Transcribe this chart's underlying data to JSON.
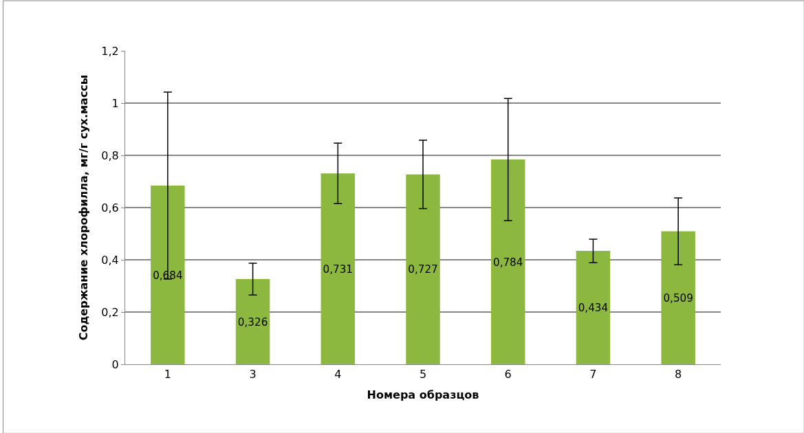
{
  "chart_data": {
    "type": "bar",
    "xlabel": "Номера образцов",
    "ylabel": "Содержание хлорофилла, мг/г сух.массы",
    "categories": [
      "1",
      "3",
      "4",
      "5",
      "6",
      "7",
      "8"
    ],
    "values": [
      0.684,
      0.326,
      0.731,
      0.727,
      0.784,
      0.434,
      0.509
    ],
    "errors": [
      0.358,
      0.061,
      0.116,
      0.131,
      0.234,
      0.045,
      0.128
    ],
    "value_labels": [
      "0,684",
      "0,326",
      "0,731",
      "0,727",
      "0,784",
      "0,434",
      "0,509"
    ],
    "color": "#8db83f",
    "ylim": [
      0,
      1.2
    ],
    "yticks": [
      0,
      {
        "value": 0.2,
        "label": "0,2"
      },
      {
        "value": 0.4,
        "label": "0,4"
      },
      {
        "value": 0.6,
        "label": "0,6"
      },
      {
        "value": 0.8,
        "label": "0,8"
      },
      1,
      {
        "value": 1.2,
        "label": "1,2"
      }
    ],
    "grid": "y"
  }
}
